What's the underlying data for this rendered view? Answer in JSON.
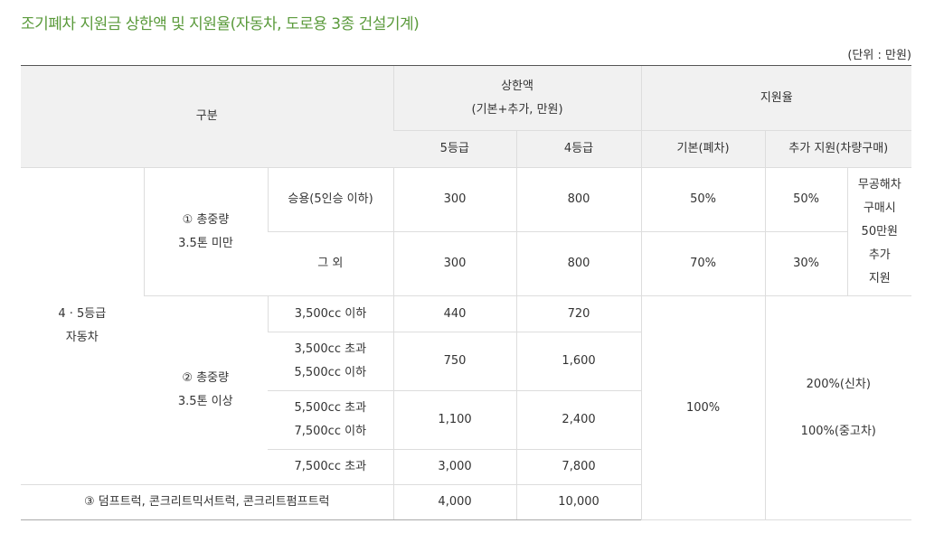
{
  "page": {
    "title": "조기폐차 지원금 상한액 및 지원율(자동차, 도로용 3종 건설기계)",
    "unit": "(단위 : 만원)"
  },
  "table": {
    "header": {
      "category": "구분",
      "cap_line1": "상한액",
      "cap_line2": "(기본+추가, 만원)",
      "rate": "지원율",
      "grade5": "5등급",
      "grade4": "4등급",
      "rate_basic": "기본(폐차)",
      "rate_extra": "추가 지원(차량구매)"
    },
    "group_vehicle_line1": "4 · 5등급",
    "group_vehicle_line2": "자동차",
    "sub1_line1": "① 총중량",
    "sub1_line2": "3.5톤 미만",
    "sub2_line1": "② 총중량",
    "sub2_line2": "3.5톤 이상",
    "rows": [
      {
        "label": "승용(5인승 이하)",
        "g5": "300",
        "g4": "800",
        "basic": "50%",
        "extra": "50%"
      },
      {
        "label": "그 외",
        "g5": "300",
        "g4": "800",
        "basic": "70%",
        "extra": "30%"
      },
      {
        "label": "3,500cc 이하",
        "g5": "440",
        "g4": "720"
      },
      {
        "label_line1": "3,500cc 초과",
        "label_line2": "5,500cc 이하",
        "g5": "750",
        "g4": "1,600"
      },
      {
        "label_line1": "5,500cc 초과",
        "label_line2": "7,500cc 이하",
        "g5": "1,100",
        "g4": "2,400"
      },
      {
        "label": "7,500cc 초과",
        "g5": "3,000",
        "g4": "7,800"
      },
      {
        "label": "③ 덤프트럭, 콘크리트믹서트럭, 콘크리트펌프트럭",
        "g5": "4,000",
        "g4": "10,000"
      }
    ],
    "side_note": [
      "무공해차",
      "구매시",
      "50만원",
      "추가",
      "지원"
    ],
    "basic_large": "100%",
    "extra_large_line1": "200%(신차)",
    "extra_large_line2": "100%(중고차)"
  }
}
